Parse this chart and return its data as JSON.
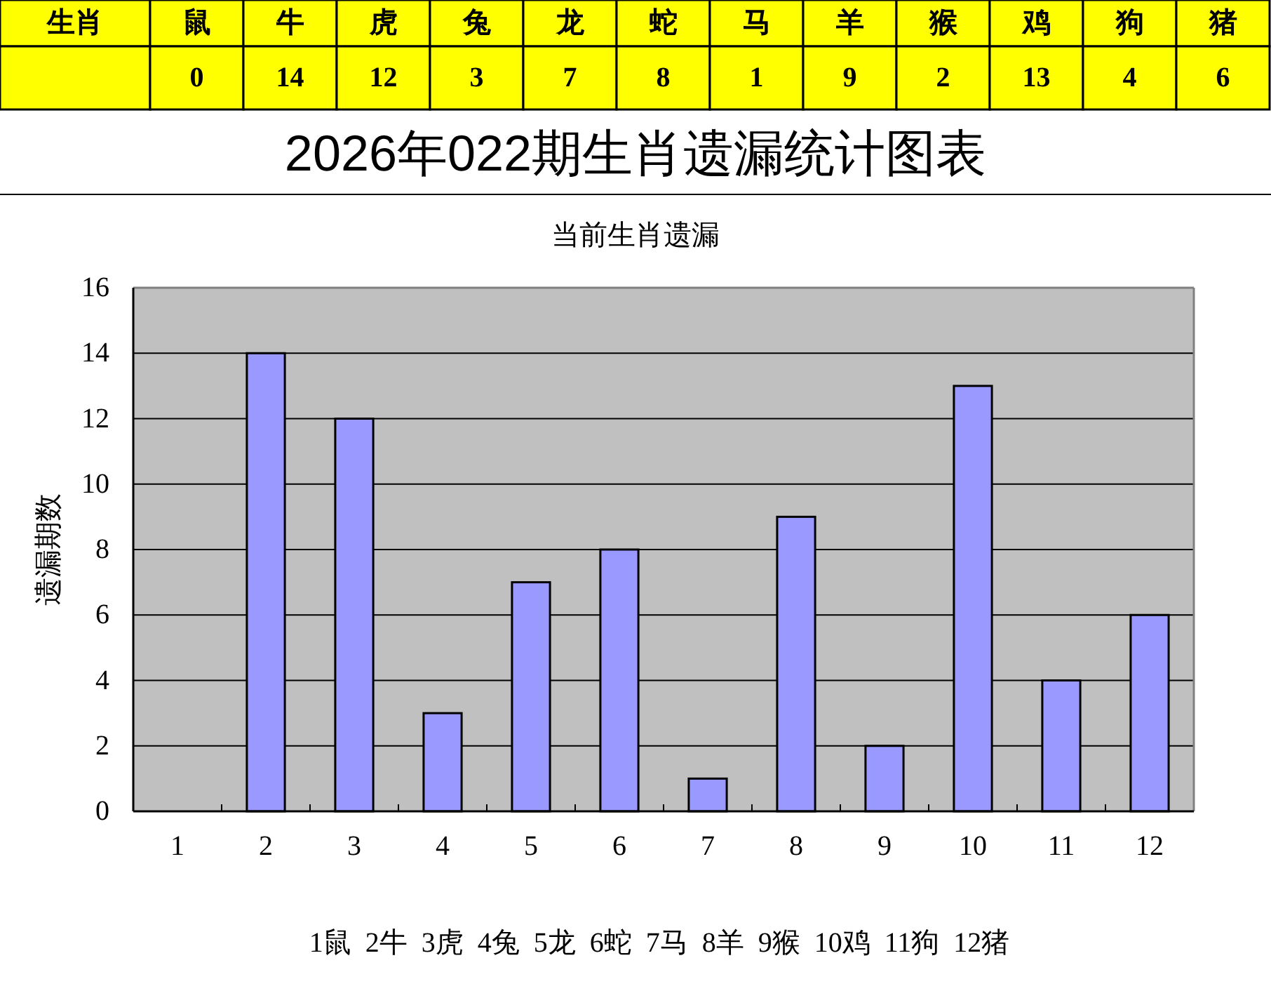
{
  "chart_data": [
    {
      "type": "other",
      "xlabel": "生肖",
      "categories": [
        "鼠",
        "牛",
        "虎",
        "兔",
        "龙",
        "蛇",
        "马",
        "羊",
        "猴",
        "鸡",
        "狗",
        "猪"
      ],
      "values": [
        0,
        14,
        12,
        3,
        7,
        8,
        1,
        9,
        2,
        13,
        4,
        6
      ],
      "data_labels": true
    },
    {
      "type": "bar",
      "title": "2026年022期生肖遗漏统计图表",
      "subtitle": "当前生肖遗漏",
      "ylabel": "遗漏期数",
      "categories": [
        "1",
        "2",
        "3",
        "4",
        "5",
        "6",
        "7",
        "8",
        "9",
        "10",
        "11",
        "12"
      ],
      "values": [
        0,
        14,
        12,
        3,
        7,
        8,
        1,
        9,
        2,
        13,
        4,
        6
      ],
      "color": "#9999ff",
      "ylim": [
        0,
        16
      ],
      "yticks": [
        0,
        2,
        4,
        6,
        8,
        10,
        12,
        14,
        16
      ],
      "grid": "y",
      "annotations": [
        "1鼠  2牛  3虎  4兔  5龙  6蛇  7马  8羊  9猴  10鸡  11狗  12猪"
      ]
    }
  ]
}
